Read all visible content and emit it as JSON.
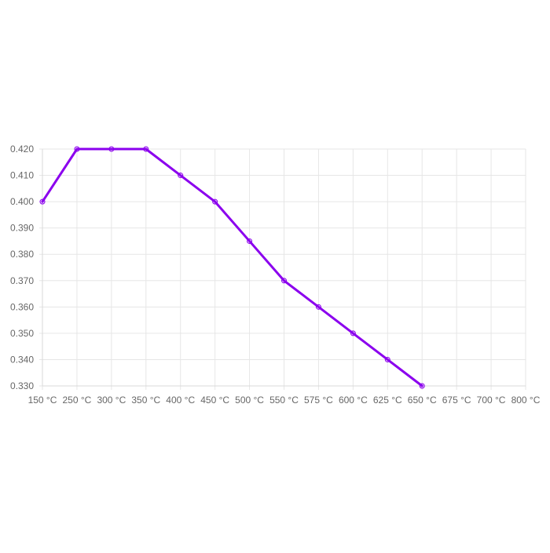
{
  "chart_data": {
    "type": "line",
    "title": "",
    "xlabel": "",
    "ylabel": "",
    "categories": [
      "150 °C",
      "250 °C",
      "300 °C",
      "350 °C",
      "400 °C",
      "450 °C",
      "500 °C",
      "550 °C",
      "575 °C",
      "600 °C",
      "625 °C",
      "650 °C",
      "675 °C",
      "700 °C",
      "800 °C"
    ],
    "series": [
      {
        "values": [
          0.4,
          0.42,
          0.42,
          0.42,
          0.41,
          0.4,
          0.385,
          0.37,
          0.36,
          0.35,
          0.34,
          0.33,
          null,
          null,
          null
        ]
      }
    ],
    "y_ticks": [
      "0.420",
      "0.410",
      "0.400",
      "0.390",
      "0.380",
      "0.370",
      "0.360",
      "0.350",
      "0.340",
      "0.330"
    ],
    "ylim": [
      0.33,
      0.42
    ],
    "grid": true,
    "legend": "none",
    "colors": {
      "series": "#8B00EE",
      "grid": "#e6e6e6",
      "tick_text": "#666666"
    }
  }
}
